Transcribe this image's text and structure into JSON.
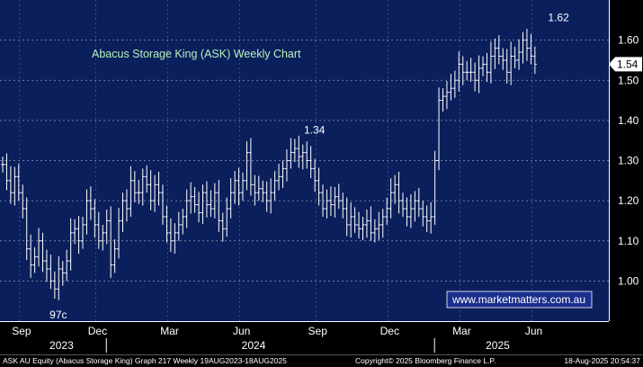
{
  "chart_data": {
    "type": "ohlc",
    "title": "Abacus Storage King (ASK) Weekly Chart",
    "ylim": [
      0.9,
      1.7
    ],
    "y_ticks": [
      "1.60",
      "1.50",
      "1.40",
      "1.30",
      "1.20",
      "1.10",
      "1.00"
    ],
    "y_tick_values": [
      1.6,
      1.5,
      1.4,
      1.3,
      1.2,
      1.1,
      1.0
    ],
    "last_price_label": "1.54",
    "last_price": 1.54,
    "annotations": [
      {
        "text": "1.62",
        "week": 138,
        "value": 1.62
      },
      {
        "text": "1.34",
        "week": 77,
        "value": 1.34
      },
      {
        "text": "97c",
        "week": 13,
        "value": 0.97
      }
    ],
    "months": [
      {
        "label": "Sep",
        "week": 2
      },
      {
        "label": "Dec",
        "week": 21
      },
      {
        "label": "Mar",
        "week": 39
      },
      {
        "label": "Jun",
        "week": 57
      },
      {
        "label": "Sep",
        "week": 76
      },
      {
        "label": "Dec",
        "week": 94
      },
      {
        "label": "Mar",
        "week": 112
      },
      {
        "label": "Jun",
        "week": 130
      }
    ],
    "years": [
      {
        "label": "2023",
        "week": 12
      },
      {
        "label": "2024",
        "week": 60
      },
      {
        "label": "2025",
        "week": 121
      }
    ],
    "year_dividers": [
      25,
      107
    ],
    "weeks_visible": 147,
    "series": [
      {
        "values": [
          1.29,
          1.25,
          1.22,
          1.26,
          1.22,
          1.18,
          1.08,
          1.04,
          1.06,
          1.1,
          1.05,
          1.03,
          1.0,
          0.98,
          1.03,
          1.02,
          1.05,
          1.12,
          1.13,
          1.1,
          1.14,
          1.2,
          1.18,
          1.14,
          1.1,
          1.12,
          1.15,
          1.04,
          1.08,
          1.15,
          1.2,
          1.18,
          1.25,
          1.22,
          1.22,
          1.26,
          1.24,
          1.2,
          1.24,
          1.22,
          1.16,
          1.12,
          1.1,
          1.12,
          1.14,
          1.16,
          1.2,
          1.21,
          1.19,
          1.17,
          1.22,
          1.19,
          1.18,
          1.22,
          1.15,
          1.13,
          1.18,
          1.22,
          1.25,
          1.22,
          1.25,
          1.32,
          1.24,
          1.22,
          1.23,
          1.22,
          1.2,
          1.22,
          1.25,
          1.26,
          1.28,
          1.3,
          1.32,
          1.33,
          1.31,
          1.32,
          1.3,
          1.28,
          1.25,
          1.22,
          1.18,
          1.2,
          1.19,
          1.21,
          1.2,
          1.18,
          1.14,
          1.16,
          1.14,
          1.13,
          1.14,
          1.15,
          1.12,
          1.13,
          1.14,
          1.16,
          1.18,
          1.22,
          1.24,
          1.2,
          1.18,
          1.16,
          1.18,
          1.2,
          1.18,
          1.16,
          1.15,
          1.16,
          1.3,
          1.45,
          1.46,
          1.47,
          1.48,
          1.5,
          1.54,
          1.52,
          1.52,
          1.52,
          1.5,
          1.53,
          1.54,
          1.52,
          1.56,
          1.58,
          1.56,
          1.55,
          1.52,
          1.56,
          1.55,
          1.57,
          1.6,
          1.58,
          1.56,
          1.54
        ]
      }
    ]
  },
  "watermark": "www.marketmatters.com.au",
  "footer": {
    "left": "ASK AU Equity (Abacus Storage King) Graph 217  Weekly 19AUG2023-18AUG2025",
    "center": "Copyright© 2025 Bloomberg Finance L.P.",
    "right": "18-Aug-2025 20:54:37"
  },
  "colors": {
    "background": "#000000",
    "plot_background": "#0a1f5c",
    "bars": "#ffffff",
    "title": "#b7f0b7",
    "watermark_bg": "#1a2f8c",
    "watermark_text": "#ffffff",
    "price_tag": "#ffffff"
  }
}
